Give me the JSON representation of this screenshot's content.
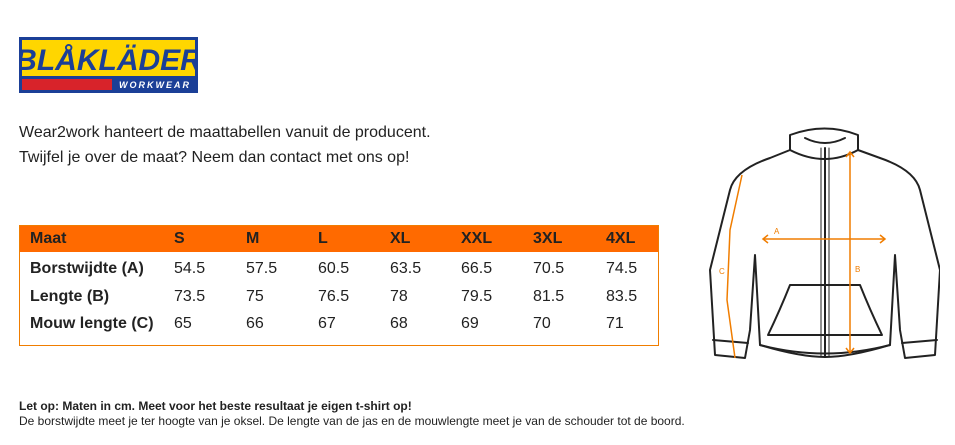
{
  "logo": {
    "brand": "BLÅKLÄDER",
    "tagline": "WORKWEAR",
    "colors": {
      "blue": "#1b3f97",
      "yellow": "#ffd600",
      "red": "#d8232a"
    }
  },
  "intro": {
    "line1": "Wear2work hanteert de maattabellen vanuit de producent.",
    "line2": "Twijfel je over de maat? Neem dan contact met ons op!"
  },
  "table": {
    "header": [
      "Maat",
      "S",
      "M",
      "L",
      "XL",
      "XXL",
      "3XL",
      "4XL"
    ],
    "rows": [
      {
        "label": "Borstwijdte (A)",
        "values": [
          "54.5",
          "57.5",
          "60.5",
          "63.5",
          "66.5",
          "70.5",
          "74.5"
        ]
      },
      {
        "label": "Lengte (B)",
        "values": [
          "73.5",
          "75",
          "76.5",
          "78",
          "79.5",
          "81.5",
          "83.5"
        ]
      },
      {
        "label": "Mouw lengte (C)",
        "values": [
          "65",
          "66",
          "67",
          "68",
          "69",
          "70",
          "71"
        ]
      }
    ],
    "header_color": "#ff6a00",
    "border_color": "#f07d00"
  },
  "diagram": {
    "labels": {
      "a": "A",
      "b": "B",
      "c": "C"
    },
    "measure_color": "#f07d00"
  },
  "note": {
    "bold": "Let op: Maten in cm. Meet voor het beste resultaat je eigen t-shirt op!",
    "text": "De borstwijdte meet je ter hoogte van je oksel. De lengte van de jas en de mouwlengte meet je van de schouder tot de boord."
  }
}
